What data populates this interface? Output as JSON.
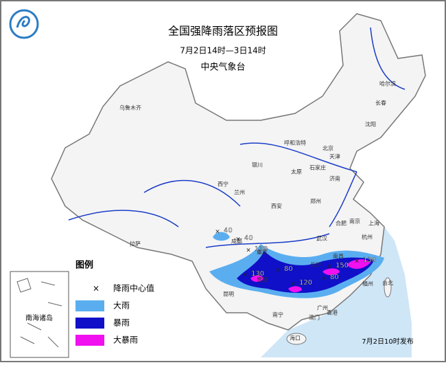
{
  "header": {
    "title": "全国强降雨落区预报图",
    "period": "7月2日14时—3日14时",
    "issuer": "中央气象台"
  },
  "cities": [
    "乌鲁木齐",
    "哈尔滨",
    "长春",
    "沈阳",
    "呼和浩特",
    "北京",
    "天津",
    "银川",
    "太原",
    "石家庄",
    "西宁",
    "兰州",
    "济南",
    "郑州",
    "西安",
    "合肥",
    "南京",
    "上海",
    "杭州",
    "拉萨",
    "成都",
    "重庆",
    "武汉",
    "长沙",
    "南昌",
    "福州",
    "台北",
    "贵阳",
    "昆明",
    "南宁",
    "广州",
    "香港",
    "澳门",
    "海口"
  ],
  "rain_centers": [
    40,
    40,
    130,
    80,
    130,
    120,
    80,
    150,
    130
  ],
  "legend": {
    "title": "图例",
    "items": [
      {
        "label": "降雨中心值"
      },
      {
        "label": "大雨",
        "color": "#5aaef0"
      },
      {
        "label": "暴雨",
        "color": "#1010c8"
      },
      {
        "label": "大暴雨",
        "color": "#f010f0"
      }
    ]
  },
  "inset_label": "南海诸岛",
  "footer": "7月2日10时发布"
}
